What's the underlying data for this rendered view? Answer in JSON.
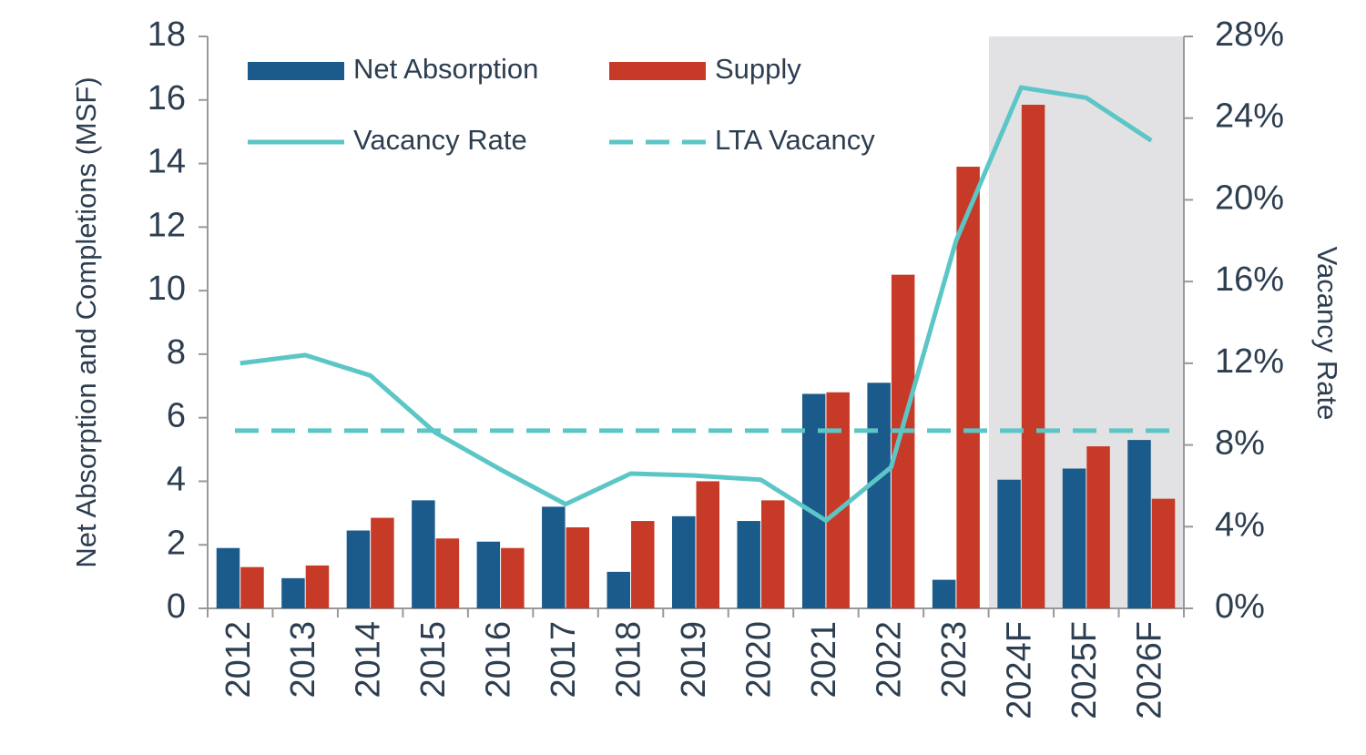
{
  "chart_data": {
    "type": "bar",
    "categories": [
      "2012",
      "2013",
      "2014",
      "2015",
      "2016",
      "2017",
      "2018",
      "2019",
      "2020",
      "2021",
      "2022",
      "2023",
      "2024F",
      "2025F",
      "2026F"
    ],
    "y_axis_label": "Net Absorption and Completions (MSF)",
    "y2_axis_label": "Vacancy Rate",
    "ylim": [
      0,
      18
    ],
    "yticks": [
      0,
      2,
      4,
      6,
      8,
      10,
      12,
      14,
      16,
      18
    ],
    "y2lim": [
      0,
      28
    ],
    "y2ticks": [
      {
        "value": 0,
        "label": "0%"
      },
      {
        "value": 4,
        "label": "4%"
      },
      {
        "value": 8,
        "label": "8%"
      },
      {
        "value": 12,
        "label": "12%"
      },
      {
        "value": 16,
        "label": "16%"
      },
      {
        "value": 20,
        "label": "20%"
      },
      {
        "value": 24,
        "label": "24%"
      },
      {
        "value": 28,
        "label": "28%"
      }
    ],
    "series": [
      {
        "name": "Net Absorption",
        "type": "bar",
        "color": "#1b5b8c",
        "values": [
          1.9,
          0.95,
          2.45,
          3.4,
          2.1,
          3.2,
          1.15,
          2.9,
          2.75,
          6.75,
          7.1,
          0.9,
          4.05,
          4.4,
          5.3
        ]
      },
      {
        "name": "Supply",
        "type": "bar",
        "color": "#c83a28",
        "values": [
          1.3,
          1.35,
          2.85,
          2.2,
          1.9,
          2.55,
          2.75,
          4.0,
          3.4,
          6.8,
          10.5,
          13.9,
          15.85,
          5.1,
          3.45
        ]
      },
      {
        "name": "Vacancy Rate",
        "type": "line",
        "axis": "y2",
        "color": "#5cc6c6",
        "values": [
          12.0,
          12.4,
          11.4,
          8.6,
          6.8,
          5.1,
          6.6,
          6.5,
          6.3,
          4.3,
          6.9,
          18.0,
          25.5,
          25.0,
          22.9
        ]
      },
      {
        "name": "LTA Vacancy",
        "type": "hline",
        "axis": "y2",
        "color": "#5cc6c6",
        "dashed": true,
        "value": 8.7
      }
    ]
  }
}
